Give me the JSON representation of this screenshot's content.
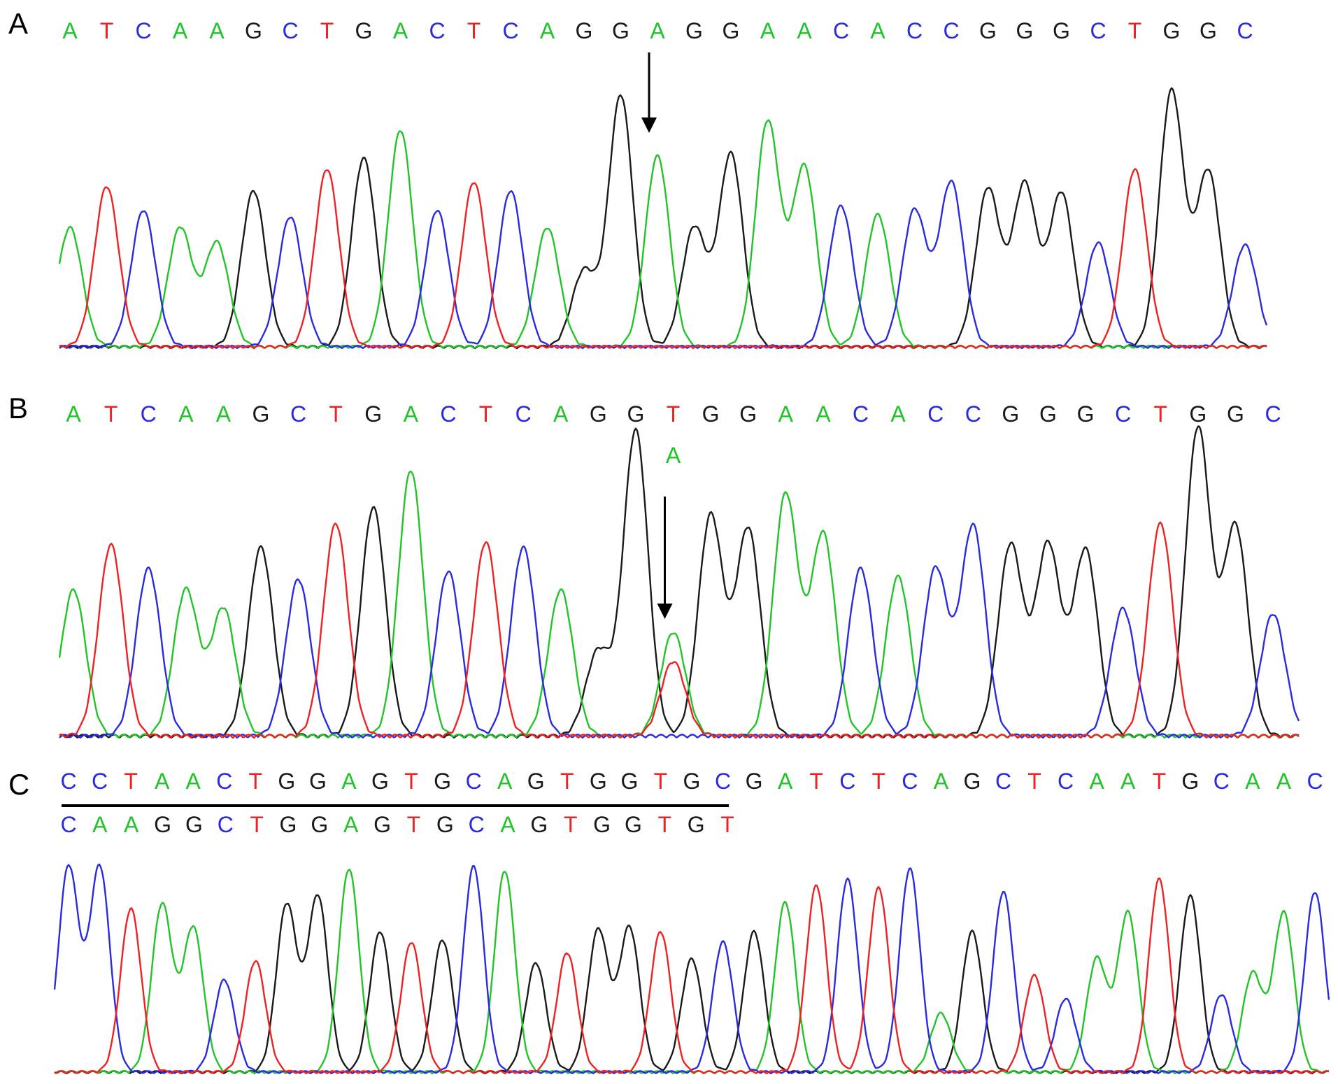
{
  "colors": {
    "A": "#22c42a",
    "C": "#2a2ae0",
    "G": "#1a1a1a",
    "T": "#ee2222"
  },
  "panels": [
    {
      "label": "A",
      "sequence": "ATCAAGCTGACTCAGGAGGAACACCGGGCTGGC",
      "peak_heights": [
        0.55,
        0.74,
        0.63,
        0.55,
        0.48,
        0.72,
        0.6,
        0.82,
        0.87,
        1.0,
        0.63,
        0.76,
        0.72,
        0.55,
        0.35,
        1.16,
        0.88,
        0.55,
        0.89,
        1.04,
        0.83,
        0.65,
        0.61,
        0.63,
        0.76,
        0.73,
        0.75,
        0.71,
        0.48,
        0.82,
        1.18,
        0.81,
        0.47
      ],
      "arrow_base_index": 16,
      "secondary_call": ""
    },
    {
      "label": "B",
      "sequence": "ATCAAGCTGACTCAGGTGGAACACCGGGCTGGC",
      "peak_heights": [
        0.55,
        0.72,
        0.63,
        0.55,
        0.48,
        0.71,
        0.59,
        0.8,
        0.86,
        1.0,
        0.62,
        0.73,
        0.71,
        0.55,
        0.32,
        1.15,
        0.28,
        0.83,
        0.78,
        0.91,
        0.76,
        0.63,
        0.6,
        0.63,
        0.79,
        0.72,
        0.72,
        0.7,
        0.48,
        0.8,
        1.16,
        0.79,
        0.46
      ],
      "arrow_base_index": 16,
      "secondary_call": "A",
      "secondary_peak_height": 0.39
    },
    {
      "label": "C",
      "sequence": "CCTAACTGGAGTGCAGTGGTGCGATCTCAGCTCAATGCAAC",
      "second_sequence": "CAAGGCTGGAGTGCAGTGGTGT",
      "peak_heights": [
        0.98,
        0.98,
        0.78,
        0.8,
        0.69,
        0.44,
        0.53,
        0.8,
        0.84,
        0.97,
        0.67,
        0.62,
        0.63,
        0.98,
        0.96,
        0.52,
        0.57,
        0.68,
        0.69,
        0.67,
        0.54,
        0.62,
        0.67,
        0.81,
        0.89,
        0.92,
        0.88,
        0.97,
        0.28,
        0.67,
        0.86,
        0.46,
        0.35,
        0.54,
        0.76,
        0.92,
        0.84,
        0.37,
        0.47,
        0.76,
        0.86
      ]
    }
  ]
}
